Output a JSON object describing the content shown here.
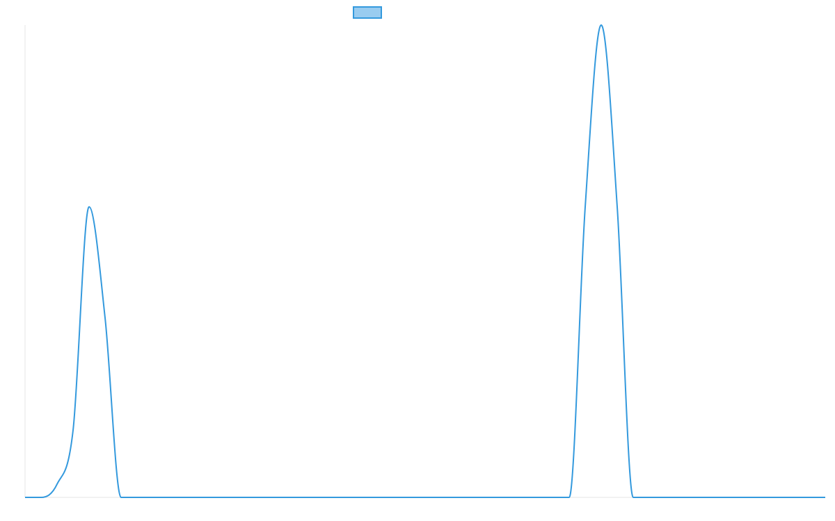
{
  "chart_data": {
    "type": "line",
    "title": "",
    "xlabel": "",
    "ylabel": "",
    "grid": false,
    "legend": {
      "placement": "top-center",
      "entries": [
        {
          "label": "",
          "fill": "#99ccf0",
          "stroke": "#3399dd"
        }
      ]
    },
    "series": [
      {
        "color": "#3399dd",
        "x": [
          0,
          1,
          2,
          3,
          4,
          5,
          6,
          7,
          8,
          9,
          10,
          11,
          33,
          34,
          35,
          36,
          37,
          38,
          39,
          40,
          41,
          50
        ],
        "y": [
          0,
          0,
          2.8,
          14.2,
          61.5,
          38,
          0,
          0,
          0,
          0,
          0,
          0,
          0,
          0,
          61.5,
          100,
          61.5,
          0,
          0,
          0,
          0,
          0
        ]
      }
    ],
    "xlim": [
      0,
      50
    ],
    "ylim": [
      0,
      100
    ]
  }
}
